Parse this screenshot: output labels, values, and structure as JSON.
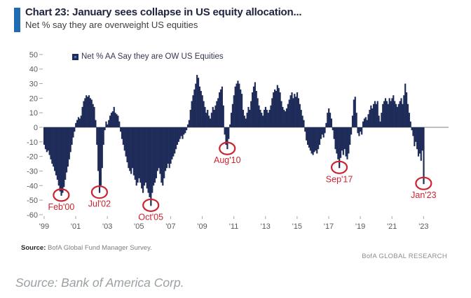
{
  "header": {
    "title": "Chart 23: January sees collapse in US equity allocation...",
    "subtitle": "Net % say they are overweight US equities"
  },
  "legend": {
    "label": "Net % AA Say they are OW US Equities"
  },
  "footer": {
    "source_label": "Source:",
    "source_text": "BofA Global Fund Manager Survey.",
    "brand": "BofA GLOBAL RESEARCH"
  },
  "caption": "Source: Bank of America Corp.",
  "colors": {
    "bar": "#1f2c5a",
    "accent": "#1f6cb5",
    "annotation": "#cb2430",
    "axis_text": "#595959",
    "tick_mark": "#a6a6a6",
    "zero_line": "#808080"
  },
  "chart_data": {
    "type": "bar",
    "title": "Net % AA Say they are OW US Equities",
    "x_start": "Jan 1999",
    "x_end": "Jan 2023",
    "frequency": "monthly",
    "ylim": [
      -60,
      50
    ],
    "ytick_step": 10,
    "grid": false,
    "legend_position": "top-left",
    "xtick_labels": [
      "'99",
      "'01",
      "'03",
      "'05",
      "'07",
      "'09",
      "'11",
      "'13",
      "'15",
      "'17",
      "'19",
      "'21",
      "'23"
    ],
    "xtick_month_indices": [
      0,
      24,
      48,
      72,
      96,
      120,
      144,
      168,
      192,
      216,
      240,
      264,
      288
    ],
    "values": [
      -12,
      -15,
      -17,
      -16,
      -19,
      -22,
      -25,
      -27,
      -30,
      -33,
      -36,
      -40,
      -44,
      -47,
      -45,
      -41,
      -36,
      -31,
      -27,
      -22,
      -17,
      -12,
      -7,
      -3,
      3,
      5,
      7,
      6,
      8,
      14,
      18,
      20,
      22,
      21,
      22,
      20,
      19,
      16,
      14,
      5,
      -12,
      -30,
      -45,
      -40,
      -28,
      -12,
      -2,
      4,
      2,
      5,
      8,
      10,
      11,
      14,
      10,
      9,
      8,
      4,
      -3,
      -8,
      -12,
      -16,
      -20,
      -24,
      -28,
      -30,
      -32,
      -28,
      -33,
      -36,
      -40,
      -38,
      -35,
      -38,
      -42,
      -45,
      -40,
      -38,
      -42,
      -45,
      -48,
      -54,
      -45,
      -40,
      -38,
      -35,
      -30,
      -28,
      -32,
      -38,
      -40,
      -35,
      -30,
      -28,
      -25,
      -28,
      -25,
      -22,
      -20,
      -18,
      -15,
      -12,
      -10,
      -8,
      -6,
      -8,
      -5,
      -4,
      -2,
      2,
      5,
      12,
      18,
      22,
      26,
      30,
      36,
      34,
      28,
      25,
      22,
      18,
      14,
      10,
      12,
      8,
      6,
      10,
      14,
      12,
      15,
      18,
      20,
      24,
      26,
      28,
      15,
      -5,
      -12,
      -15,
      -8,
      2,
      10,
      16,
      22,
      28,
      30,
      32,
      30,
      26,
      23,
      12,
      8,
      6,
      10,
      14,
      12,
      18,
      24,
      28,
      31,
      25,
      20,
      15,
      12,
      10,
      8,
      12,
      14,
      12,
      10,
      12,
      15,
      20,
      24,
      26,
      25,
      29,
      27,
      24,
      18,
      14,
      12,
      11,
      13,
      16,
      19,
      22,
      24,
      20,
      23,
      21,
      24,
      20,
      16,
      12,
      8,
      5,
      -3,
      -9,
      -12,
      -14,
      -16,
      -18,
      -19,
      -17,
      -16,
      -18,
      -15,
      -12,
      -8,
      -5,
      -7,
      -4,
      3,
      10,
      13,
      10,
      6,
      -2,
      -8,
      -15,
      -18,
      -22,
      -28,
      -21,
      -16,
      -19,
      -15,
      -20,
      -22,
      -18,
      -12,
      -5,
      8,
      19,
      21,
      10,
      -4,
      -6,
      -3,
      -5,
      4,
      6,
      7,
      5,
      9,
      12,
      15,
      13,
      16,
      18,
      16,
      18,
      8,
      4,
      10,
      16,
      18,
      20,
      18,
      16,
      20,
      18,
      20,
      22,
      18,
      16,
      14,
      16,
      18,
      20,
      16,
      22,
      30,
      24,
      16,
      10,
      4,
      -2,
      -6,
      -13,
      -10,
      -15,
      -20,
      -18,
      -23,
      -16,
      -39
    ],
    "annotations": [
      {
        "label": "Feb'00",
        "month_index": 13,
        "value": -47
      },
      {
        "label": "Jul'02",
        "month_index": 42,
        "value": -45
      },
      {
        "label": "Oct'05",
        "month_index": 81,
        "value": -54
      },
      {
        "label": "Aug'10",
        "month_index": 139,
        "value": -15
      },
      {
        "label": "Sep'17",
        "month_index": 224,
        "value": -28
      },
      {
        "label": "Jan'23",
        "month_index": 288,
        "value": -39
      }
    ]
  }
}
